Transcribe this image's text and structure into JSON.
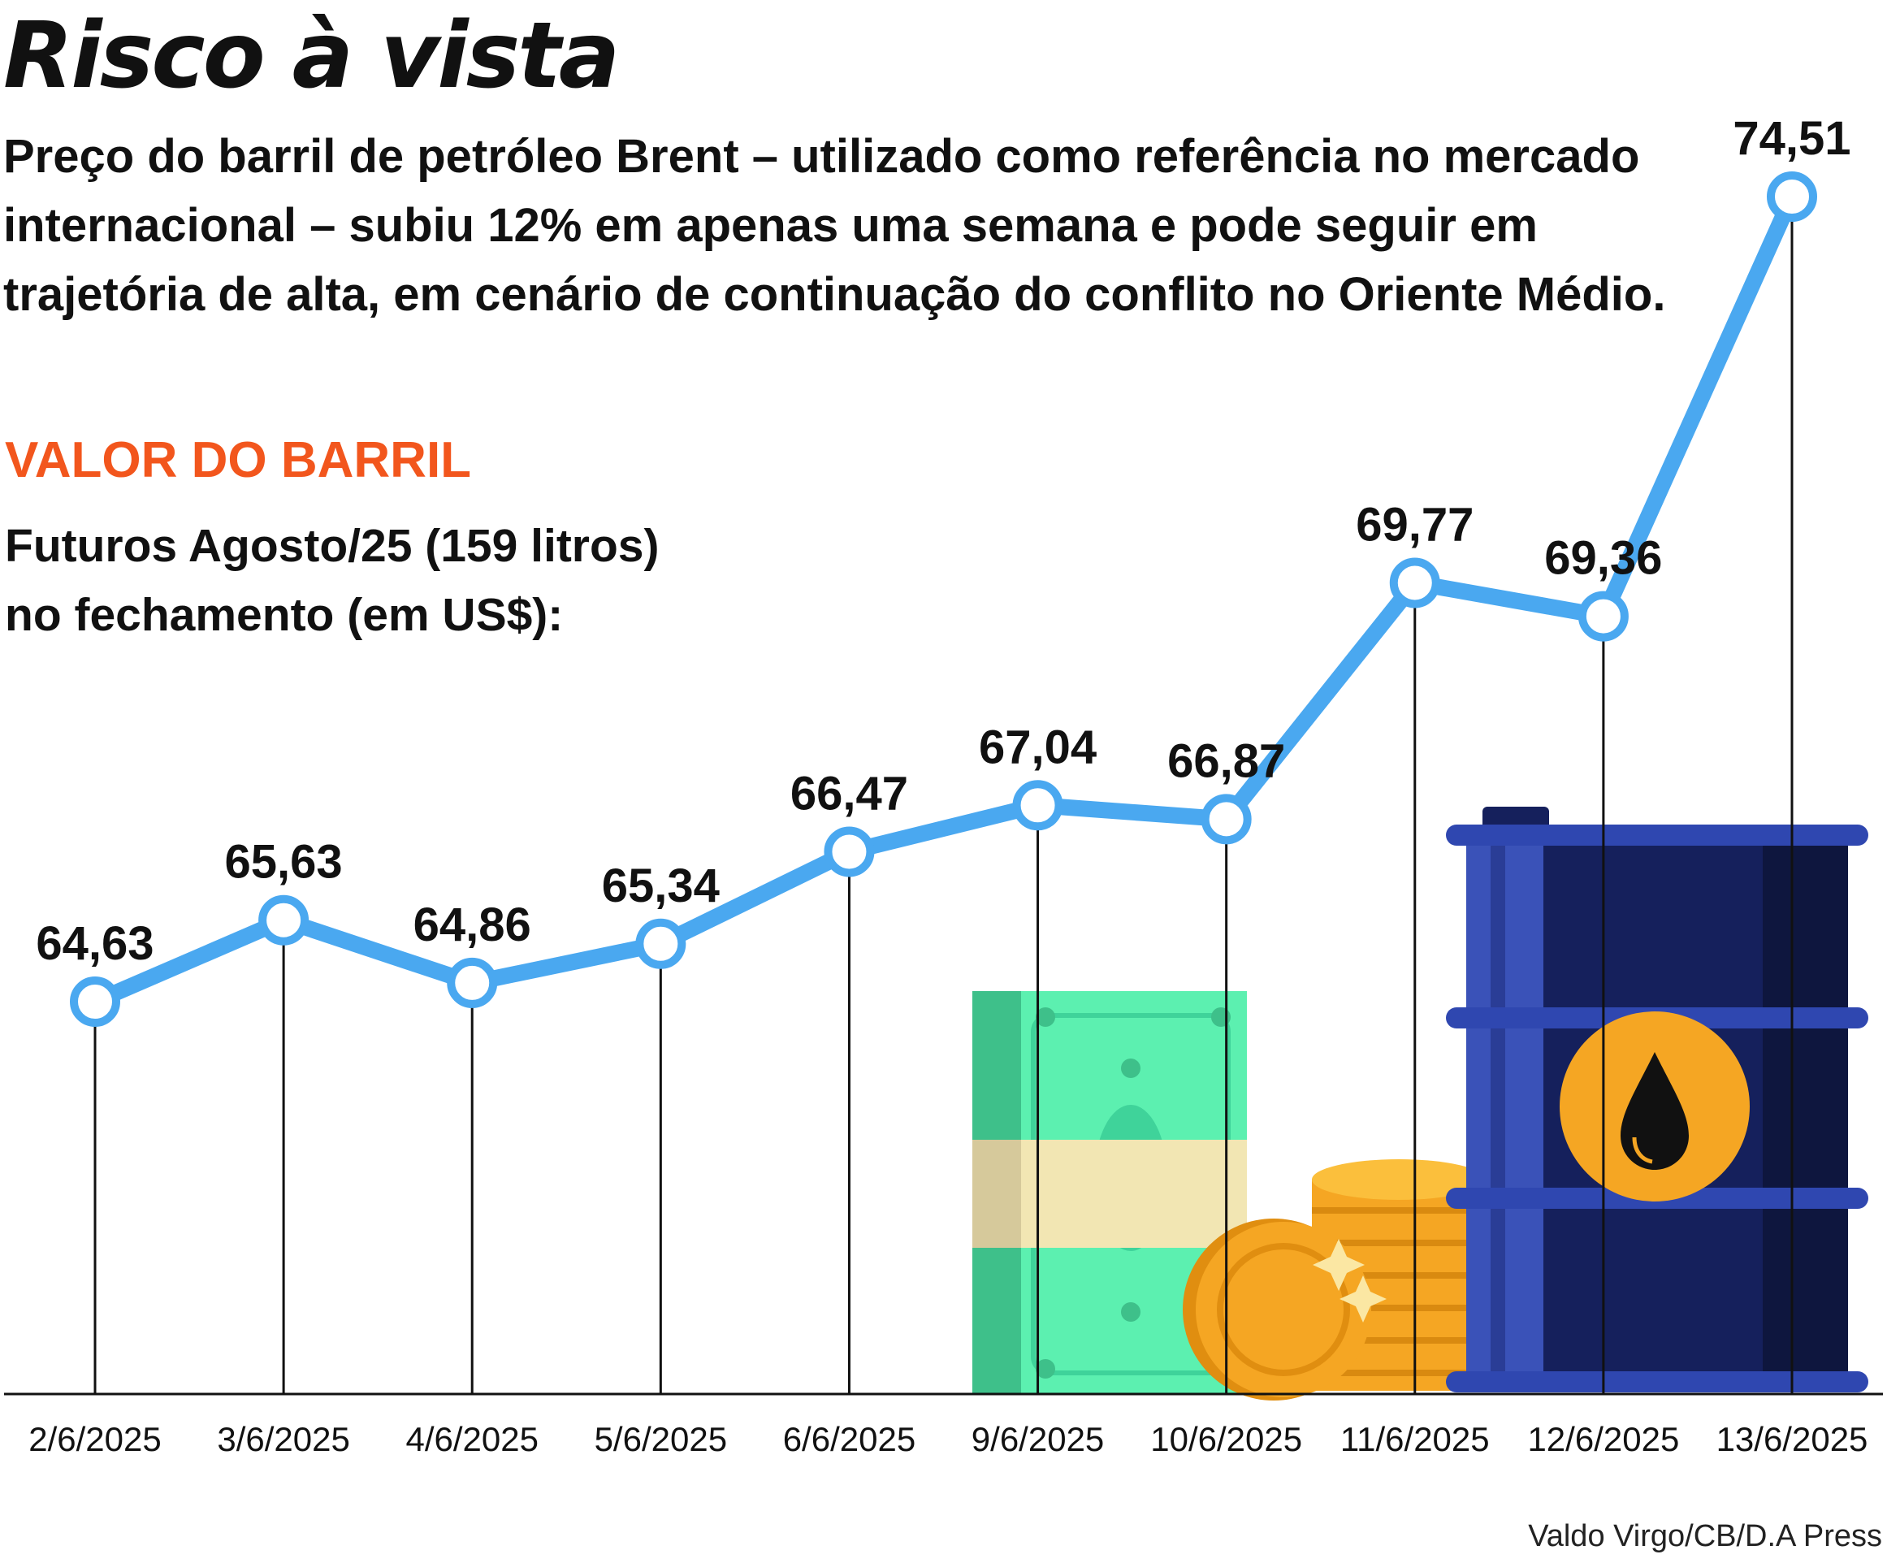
{
  "header": {
    "title": "Risco à vista",
    "subtitle": "Preço do barril de petróleo Brent – utilizado como referência no mercado internacional – subiu 12% em apenas uma semana e pode seguir em trajetória de alta, em cenário de continuação do conflito no Oriente Médio."
  },
  "section": {
    "label": "VALOR DO BARRIL",
    "description_line1": "Futuros Agosto/25 (159 litros)",
    "description_line2": "no fechamento (em US$):"
  },
  "credit": "Valdo Virgo/CB/D.A Press",
  "colors": {
    "line": "#4aa8f0",
    "accent": "#f2561d",
    "barrel": "#15205c",
    "money": "#5cf0b0",
    "coin": "#f5a623"
  },
  "chart_data": {
    "type": "line",
    "x": [
      "2/6/2025",
      "3/6/2025",
      "4/6/2025",
      "5/6/2025",
      "6/6/2025",
      "9/6/2025",
      "10/6/2025",
      "11/6/2025",
      "12/6/2025",
      "13/6/2025"
    ],
    "series": [
      {
        "values": [
          64.63,
          65.63,
          64.86,
          65.34,
          66.47,
          67.04,
          66.87,
          69.77,
          69.36,
          74.51
        ],
        "labels": [
          "64,63",
          "65,63",
          "64,86",
          "65,34",
          "66,47",
          "67,04",
          "66,87",
          "69,77",
          "69,36",
          "74,51"
        ]
      }
    ],
    "grid": false,
    "legend": "none"
  }
}
